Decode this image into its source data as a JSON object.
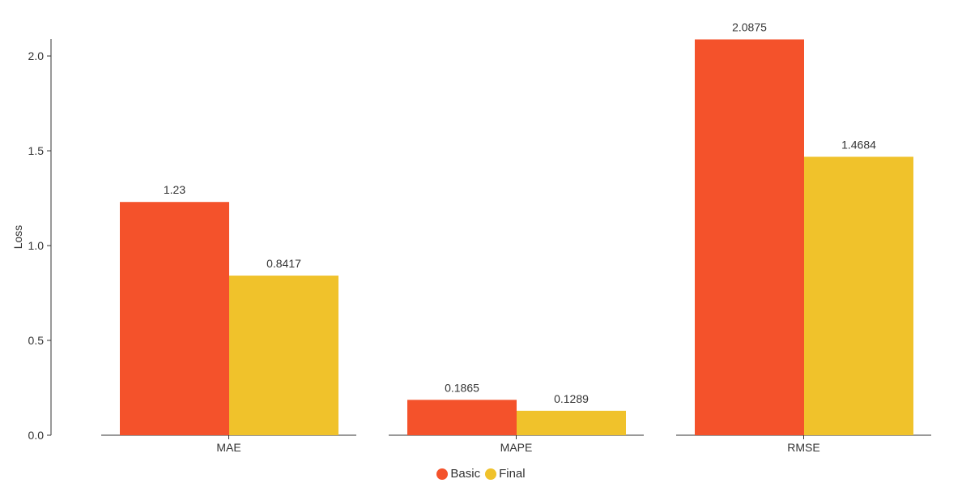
{
  "chart_data": {
    "type": "bar",
    "categories": [
      "MAE",
      "MAPE",
      "RMSE"
    ],
    "series": [
      {
        "name": "Basic",
        "values": [
          1.23,
          0.1865,
          2.0875
        ],
        "color": "#f4522b"
      },
      {
        "name": "Final",
        "values": [
          0.8417,
          0.1289,
          1.4684
        ],
        "color": "#f0c22b"
      }
    ],
    "value_labels": [
      [
        "1.23",
        "0.1865",
        "2.0875"
      ],
      [
        "0.8417",
        "0.1289",
        "1.4684"
      ]
    ],
    "ylabel": "Loss",
    "xlabel": "",
    "ylim": [
      0,
      2.09
    ],
    "yticks": [
      "0.0",
      "0.5",
      "1.0",
      "1.5",
      "2.0"
    ],
    "grid": false,
    "legend_position": "bottom-center"
  }
}
